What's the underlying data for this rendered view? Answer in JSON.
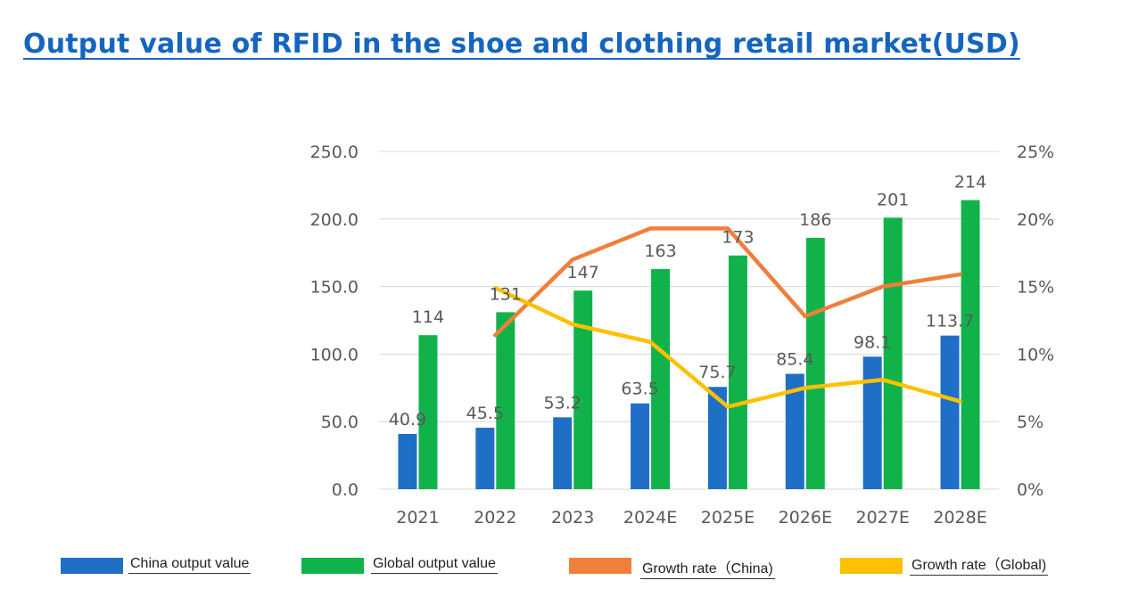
{
  "title": "Output value of RFID in the shoe and clothing retail market(USD)",
  "colors": {
    "title": "#1565c0",
    "china_bar": "#1f6fc6",
    "global_bar": "#12b24b",
    "china_growth": "#ef7f3a",
    "global_growth": "#ffc000",
    "grid": "#d9d9d9",
    "tick_text": "#595959"
  },
  "chart_data": {
    "type": "bar",
    "categories": [
      "2021",
      "2022",
      "2023",
      "2024E",
      "2025E",
      "2026E",
      "2027E",
      "2028E"
    ],
    "series": [
      {
        "name": "China output value",
        "kind": "bar",
        "axis": "left",
        "values": [
          40.9,
          45.5,
          53.2,
          63.5,
          75.7,
          85.4,
          98.1,
          113.7
        ],
        "labels": [
          "40.9",
          "45.5",
          "53.2",
          "63.5",
          "75.7",
          "85.4",
          "98.1",
          "113.7"
        ]
      },
      {
        "name": "Global output value",
        "kind": "bar",
        "axis": "left",
        "values": [
          114,
          131,
          147,
          163,
          173,
          186,
          201,
          214
        ],
        "labels": [
          "114",
          "131",
          "147",
          "163",
          "173",
          "186",
          "201",
          "214"
        ]
      },
      {
        "name": "Growth rate（China)",
        "kind": "line",
        "axis": "right",
        "values": [
          null,
          11.4,
          17.0,
          19.3,
          19.3,
          12.8,
          15.0,
          15.9
        ]
      },
      {
        "name": "Growth rate（Global)",
        "kind": "line",
        "axis": "right",
        "values": [
          null,
          14.9,
          12.2,
          10.9,
          6.1,
          7.5,
          8.1,
          6.5
        ]
      }
    ],
    "y_left": {
      "min": 0,
      "max": 250,
      "step": 50,
      "tick_labels": [
        "0.0",
        "50.0",
        "100.0",
        "150.0",
        "200.0",
        "250.0"
      ]
    },
    "y_right": {
      "min": 0,
      "max": 25,
      "step": 5,
      "tick_labels": [
        "0%",
        "5%",
        "10%",
        "15%",
        "20%",
        "25%"
      ]
    },
    "grid": true,
    "legend_position": "bottom"
  }
}
